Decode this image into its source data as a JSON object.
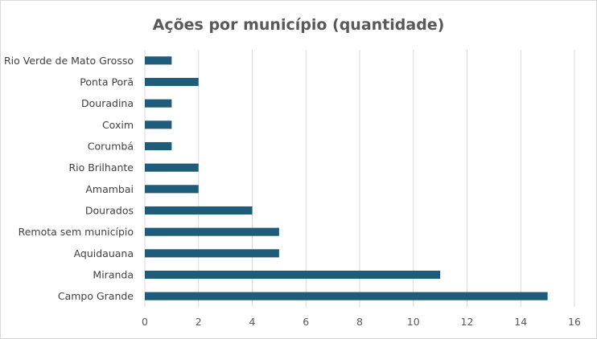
{
  "chart_data": {
    "type": "bar",
    "orientation": "horizontal",
    "title": "Ações por município (quantidade)",
    "xlabel": "",
    "ylabel": "",
    "categories": [
      "Rio Verde de Mato Grosso",
      "Ponta Porã",
      "Douradina",
      "Coxim",
      "Corumbá",
      "Rio Brilhante",
      "Amambai",
      "Dourados",
      "Remota sem município",
      "Aquidauana",
      "Miranda",
      "Campo Grande"
    ],
    "values": [
      1,
      2,
      1,
      1,
      1,
      2,
      2,
      4,
      5,
      5,
      11,
      15
    ],
    "xlim": [
      0,
      16
    ],
    "xticks": [
      0,
      2,
      4,
      6,
      8,
      10,
      12,
      14,
      16
    ],
    "grid": "vertical",
    "legend": "none",
    "bar_color": "#1f5c7a"
  }
}
